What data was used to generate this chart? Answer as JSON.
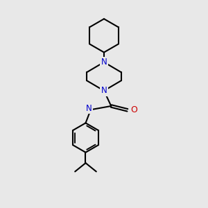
{
  "background_color": "#e8e8e8",
  "bond_color": "#000000",
  "N_color": "#0000cc",
  "O_color": "#cc0000",
  "line_width": 1.5,
  "font_size": 8.5,
  "fig_size": [
    3.0,
    3.0
  ],
  "dpi": 100,
  "xlim": [
    0,
    10
  ],
  "ylim": [
    0,
    10
  ]
}
